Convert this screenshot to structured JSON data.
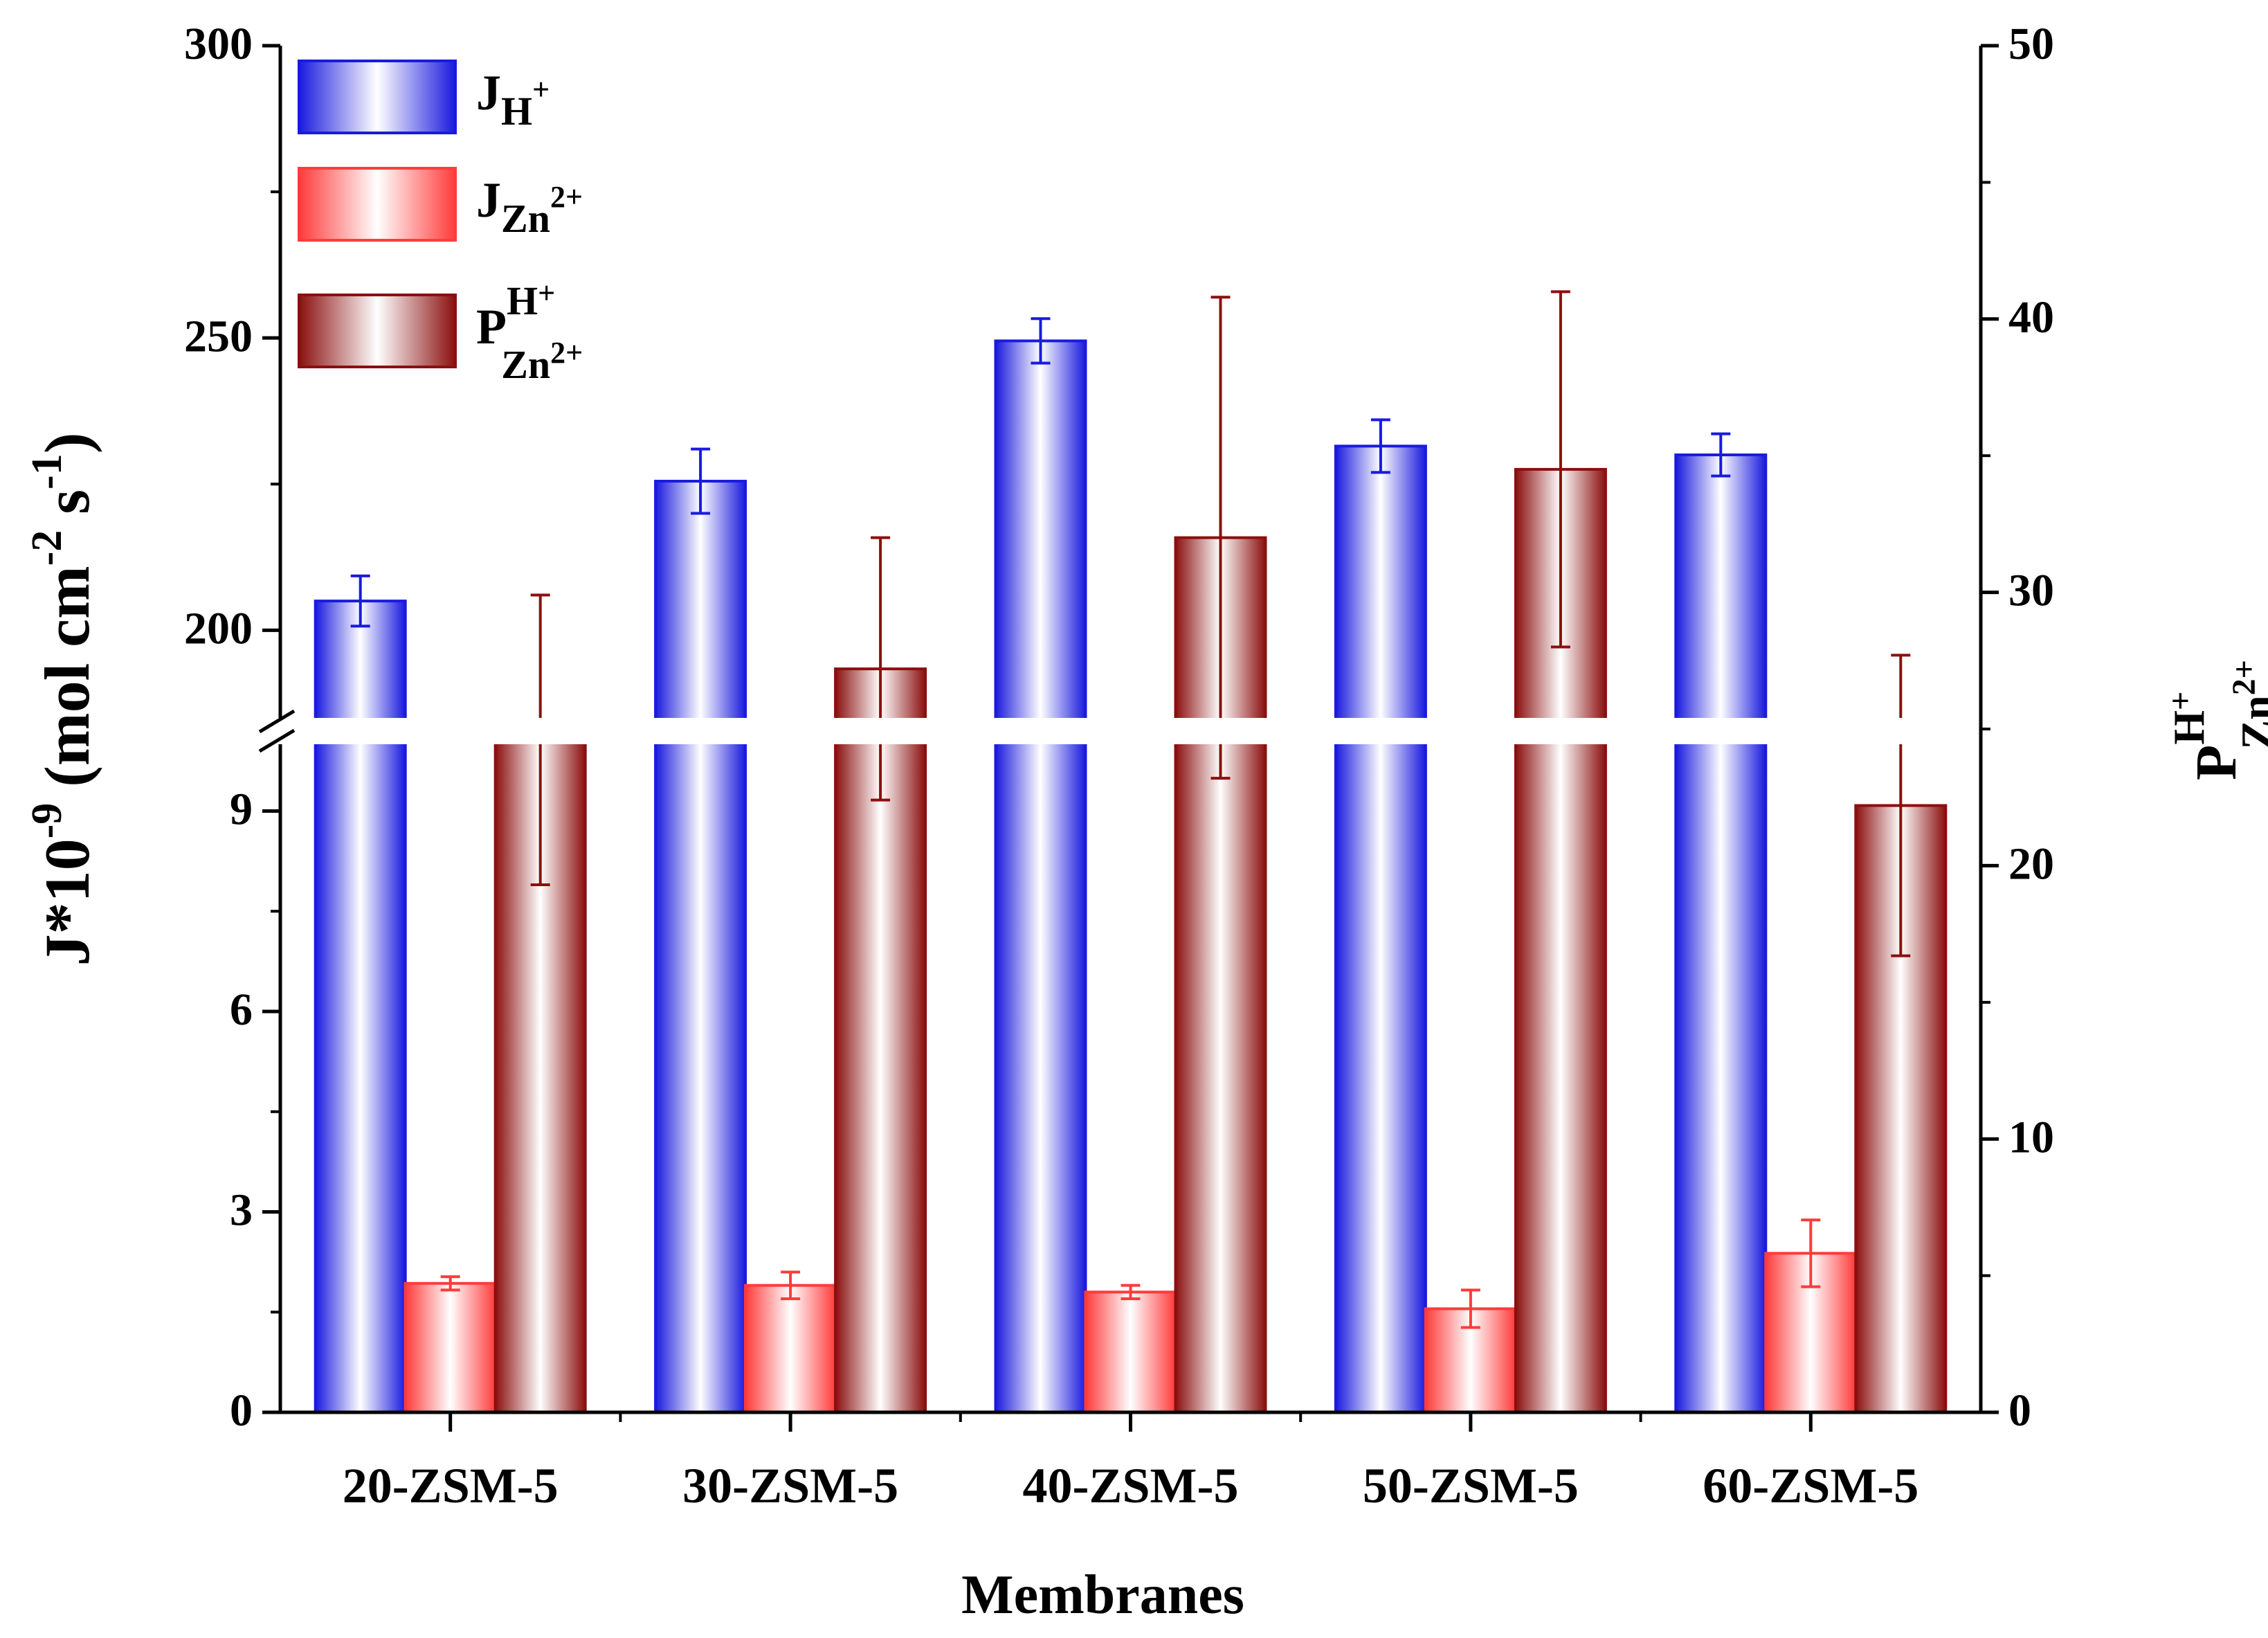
{
  "chart_data": {
    "type": "bar",
    "title": "",
    "xlabel": "Membranes",
    "ylabel_left": {
      "main": "J*10",
      "exp": "-9",
      "unit_open": " (mol cm",
      "unit_exp1": "-2",
      "unit_mid": " s",
      "unit_exp2": "-1",
      "unit_close": ")"
    },
    "ylabel_right": {
      "base": "P",
      "sup": "H",
      "sup_sign": "+",
      "sub": "Zn",
      "sub_sign": "2+"
    },
    "categories": [
      "20-ZSM-5",
      "30-ZSM-5",
      "40-ZSM-5",
      "50-ZSM-5",
      "60-ZSM-5"
    ],
    "left_axis": {
      "break": true,
      "lower_range": [
        0,
        10
      ],
      "upper_range": [
        185,
        300
      ],
      "lower_ticks": [
        "0",
        "3",
        "6",
        "9"
      ],
      "upper_ticks": [
        "200",
        "250",
        "300"
      ]
    },
    "right_axis": {
      "range": [
        0,
        50
      ],
      "ticks": [
        "0",
        "10",
        "20",
        "30",
        "40",
        "50"
      ]
    },
    "series": [
      {
        "name": "J_H+",
        "legend": {
          "base": "J",
          "sub": "H",
          "sub_sign": "+"
        },
        "axis": "left",
        "color": "#1a1adf",
        "values": [
          205,
          225.5,
          249.5,
          231.5,
          230
        ],
        "errors": [
          4.3,
          5.5,
          3.8,
          4.5,
          3.6
        ]
      },
      {
        "name": "J_Zn2+",
        "legend": {
          "base": "J",
          "sub": "Zn",
          "sub_sign": "2+"
        },
        "axis": "left",
        "color": "#ff3b3b",
        "values": [
          1.93,
          1.9,
          1.8,
          1.55,
          2.38
        ],
        "errors": [
          0.1,
          0.2,
          0.1,
          0.28,
          0.5
        ]
      },
      {
        "name": "P_Zn2+^H+",
        "legend": {
          "base": "P",
          "sup": "H",
          "sup_sign": "+",
          "sub": "Zn",
          "sub_sign": "2+"
        },
        "axis": "right",
        "color": "#8b0f0f",
        "values": [
          24.6,
          27.2,
          32.0,
          34.5,
          22.2
        ],
        "errors": [
          5.3,
          4.8,
          8.8,
          6.5,
          5.5
        ]
      }
    ]
  }
}
